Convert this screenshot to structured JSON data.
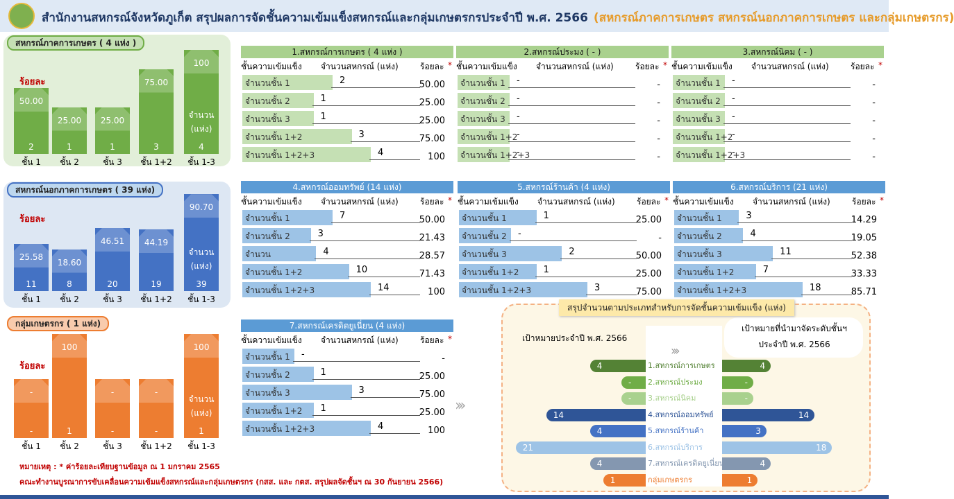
{
  "header": {
    "title": "สำนักงานสหกรณ์จังหวัดภูเก็ต สรุปผลการจัดชั้นความเข้มแข็งสหกรณ์และกลุ่มเกษตรกรประจำปี พ.ศ. 2566",
    "highlight": "(สหกรณ์ภาคการเกษตร สหกรณ์นอกภาคการเกษตร และกลุ่มเกษตรกร)"
  },
  "panels": [
    {
      "label": "สหกรณ์ภาคการเกษตร ( 4 แห่ง )",
      "percent_label": "ร้อยละ",
      "count_label": [
        "จำนวน",
        "(แห่ง)"
      ],
      "categories": [
        "ชั้น 1",
        "ชั้น 2",
        "ชั้น 3",
        "ชั้น 1+2",
        "ชั้น 1-3"
      ],
      "percents": [
        "50.00",
        "25.00",
        "25.00",
        "75.00",
        "100"
      ],
      "counts": [
        "2",
        "1",
        "1",
        "3",
        "4"
      ],
      "color": "#70ad47"
    },
    {
      "label": "สหกรณ์นอกภาคการเกษตร ( 39 แห่ง)",
      "percent_label": "ร้อยละ",
      "count_label": [
        "จำนวน",
        "(แห่ง)"
      ],
      "categories": [
        "ชั้น 1",
        "ชั้น 2",
        "ชั้น 3",
        "ชั้น 1+2",
        "ชั้น 1-3"
      ],
      "percents": [
        "25.58",
        "18.60",
        "46.51",
        "44.19",
        "90.70"
      ],
      "counts": [
        "11",
        "8",
        "20",
        "19",
        "39"
      ],
      "color": "#4472c4"
    },
    {
      "label": "กลุ่มเกษตรกร ( 1 แห่ง)",
      "percent_label": "ร้อยละ",
      "count_label": [
        "จำนวน",
        "(แห่ง)"
      ],
      "categories": [
        "ชั้น 1",
        "ชั้น 2",
        "ชั้น 3",
        "ชั้น 1+2",
        "ชั้น 1-3"
      ],
      "percents": [
        "-",
        "100",
        "-",
        "-",
        "100"
      ],
      "counts": [
        "-",
        "1",
        "-",
        "-",
        "1"
      ],
      "color": "#ed7d31"
    }
  ],
  "tables": [
    {
      "title": "1.สหกรณ์การเกษตร ( 4 แห่ง )",
      "headers": [
        "ชั้นความเข้มแข็ง",
        "จำนวนสหกรณ์ (แห่ง)",
        "ร้อยละ"
      ],
      "asterisk": "*",
      "rows": [
        [
          "จำนวนชั้น 1",
          "2",
          "50.00"
        ],
        [
          "จำนวนชั้น 2",
          "1",
          "25.00"
        ],
        [
          "จำนวนชั้น 3",
          "1",
          "25.00"
        ],
        [
          "จำนวนชั้น 1+2",
          "3",
          "75.00"
        ],
        [
          "จำนวนชั้น 1+2+3",
          "4",
          "100"
        ]
      ]
    },
    {
      "title": "2.สหกรณ์ประมง ( - )",
      "headers": [
        "ชั้นความเข้มแข็ง",
        "จำนวนสหกรณ์ (แห่ง)",
        "ร้อยละ"
      ],
      "asterisk": "*",
      "rows": [
        [
          "จำนวนชั้น 1",
          "-",
          "-"
        ],
        [
          "จำนวนชั้น 2",
          "-",
          "-"
        ],
        [
          "จำนวนชั้น 3",
          "-",
          "-"
        ],
        [
          "จำนวนชั้น 1+2",
          "-",
          "-"
        ],
        [
          "จำนวนชั้น 1+2+3",
          "-",
          "-"
        ]
      ]
    },
    {
      "title": "3.สหกรณ์นิคม ( - )",
      "headers": [
        "ชั้นความเข้มแข็ง",
        "จำนวนสหกรณ์ (แห่ง)",
        "ร้อยละ"
      ],
      "asterisk": "*",
      "rows": [
        [
          "จำนวนชั้น 1",
          "-",
          "-"
        ],
        [
          "จำนวนชั้น 2",
          "-",
          "-"
        ],
        [
          "จำนวนชั้น 3",
          "-",
          "-"
        ],
        [
          "จำนวนชั้น 1+2",
          "-",
          "-"
        ],
        [
          "จำนวนชั้น 1+2+3",
          "-",
          "-"
        ]
      ]
    },
    {
      "title": "4.สหกรณ์ออมทรัพย์ (14 แห่ง)",
      "headers": [
        "ชั้นความเข้มแข็ง",
        "จำนวนสหกรณ์ (แห่ง)",
        "ร้อยละ"
      ],
      "asterisk": "*",
      "rows": [
        [
          "จำนวนชั้น 1",
          "7",
          "50.00"
        ],
        [
          "จำนวนชั้น 2",
          "3",
          "21.43"
        ],
        [
          "จำนวน",
          "4",
          "28.57"
        ],
        [
          "จำนวนชั้น 1+2",
          "10",
          "71.43"
        ],
        [
          "จำนวนชั้น 1+2+3",
          "14",
          "100"
        ]
      ]
    },
    {
      "title": "5.สหกรณ์ร้านค้า (4 แห่ง)",
      "headers": [
        "ชั้นความเข้มแข็ง",
        "จำนวนสหกรณ์ (แห่ง)",
        "ร้อยละ"
      ],
      "asterisk": "*",
      "rows": [
        [
          "จำนวนชั้น 1",
          "1",
          "25.00"
        ],
        [
          "จำนวนชั้น 2",
          "-",
          "-"
        ],
        [
          "จำนวนชั้น 3",
          "2",
          "50.00"
        ],
        [
          "จำนวนชั้น 1+2",
          "1",
          "25.00"
        ],
        [
          "จำนวนชั้น 1+2+3",
          "3",
          "75.00"
        ]
      ]
    },
    {
      "title": "6.สหกรณ์บริการ (21 แห่ง)",
      "headers": [
        "ชั้นความเข้มแข็ง",
        "จำนวนสหกรณ์ (แห่ง)",
        "ร้อยละ"
      ],
      "asterisk": "*",
      "rows": [
        [
          "จำนวนชั้น 1",
          "3",
          "14.29"
        ],
        [
          "จำนวนชั้น 2",
          "4",
          "19.05"
        ],
        [
          "จำนวนชั้น 3",
          "11",
          "52.38"
        ],
        [
          "จำนวนชั้น 1+2",
          "7",
          "33.33"
        ],
        [
          "จำนวนชั้น 1+2+3",
          "18",
          "85.71"
        ]
      ]
    },
    {
      "title": "7.สหกรณ์เครดิตยูเนี่ยน (4 แห่ง)",
      "headers": [
        "ชั้นความเข้มแข็ง",
        "จำนวนสหกรณ์ (แห่ง)",
        "ร้อยละ"
      ],
      "asterisk": "*",
      "rows": [
        [
          "จำนวนชั้น 1",
          "-",
          "-"
        ],
        [
          "จำนวนชั้น 2",
          "1",
          "25.00"
        ],
        [
          "จำนวนชั้น 3",
          "3",
          "75.00"
        ],
        [
          "จำนวนชั้น 1+2",
          "1",
          "25.00"
        ],
        [
          "จำนวนชั้น 1+2+3",
          "4",
          "100"
        ]
      ]
    }
  ],
  "summary": {
    "title": "สรุปจำนวนตามประเภทสำหรับการจัดชั้นความเข้มแข็ง (แห่ง)",
    "left_heading": "เป้าหมายประจำปี พ.ศ. 2566",
    "right_heading": [
      "เป้าหมายที่นำมาจัดระดับชั้นฯ",
      "ประจำปี พ.ศ. 2566"
    ],
    "rows": [
      {
        "name": "1.สหกรณ์การเกษตร",
        "target": "4",
        "graded": "4",
        "color": "#548235"
      },
      {
        "name": "2.สหกรณ์ประมง",
        "target": "-",
        "graded": "-",
        "color": "#70ad47"
      },
      {
        "name": "3.สหกรณ์นิคม",
        "target": "-",
        "graded": "-",
        "color": "#a9d18e"
      },
      {
        "name": "4.สหกรณ์ออมทรัพย์",
        "target": "14",
        "graded": "14",
        "color": "#2f5597"
      },
      {
        "name": "5.สหกรณ์ร้านค้า",
        "target": "4",
        "graded": "3",
        "color": "#4472c4"
      },
      {
        "name": "6.สหกรณ์บริการ",
        "target": "21",
        "graded": "18",
        "color": "#9dc3e6"
      },
      {
        "name": "7.สหกรณ์เครดิตยูเนี่ยน",
        "target": "4",
        "graded": "4",
        "color": "#8497b0"
      },
      {
        "name": "กลุ่มเกษตรกร",
        "target": "1",
        "graded": "1",
        "color": "#ed7d31"
      }
    ]
  },
  "notes": [
    "หมายเหตุ : * ค่าร้อยละเทียบฐานข้อมูล ณ 1 มกราคม 2565",
    "คณะทำงานบูรณาการขับเคลื่อนความเข้มแข็งสหกรณ์และกลุ่มเกษตรกร (กสส. และ กตส. สรุปผลจัดชั้นฯ ณ 30 กันยายน 2566)"
  ]
}
